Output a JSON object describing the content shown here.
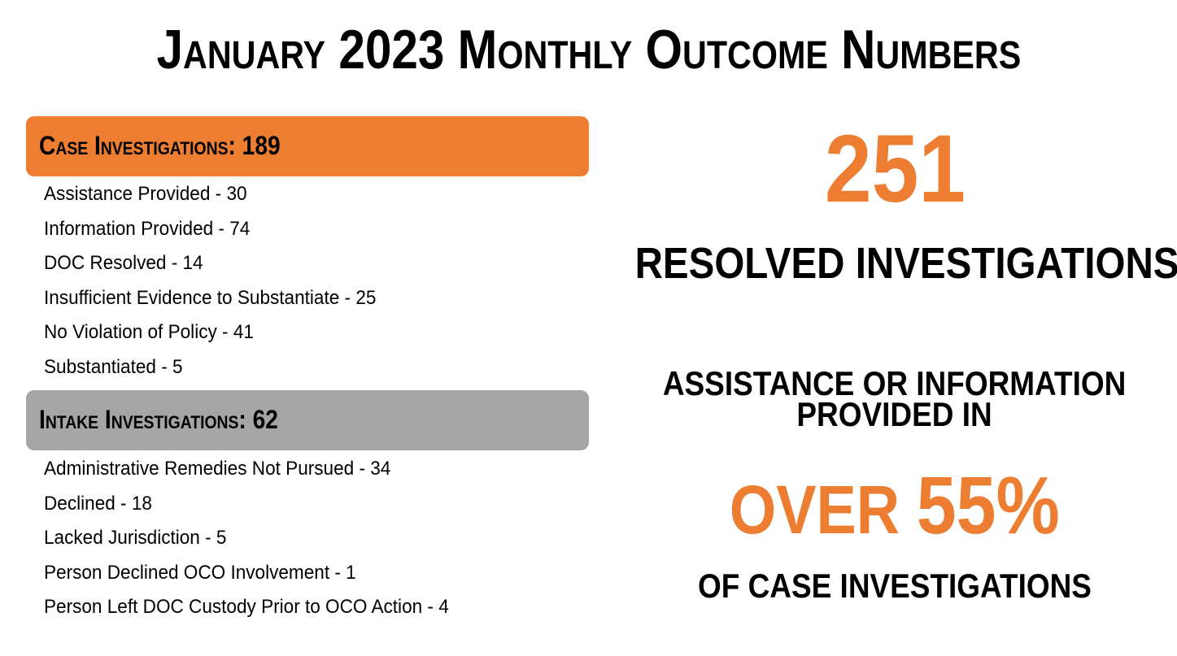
{
  "title": "January 2023 Monthly Outcome Numbers",
  "colors": {
    "accent": "#ED7D31",
    "gray": "#A5A5A5"
  },
  "case": {
    "header": "Case Investigations: 189",
    "items": [
      "Assistance Provided - 30",
      "Information Provided - 74",
      "DOC Resolved - 14",
      "Insufficient Evidence to Substantiate - 25",
      "No Violation of Policy - 41",
      "Substantiated - 5"
    ]
  },
  "intake": {
    "header": "Intake Investigations: 62",
    "items": [
      "Administrative Remedies Not Pursued - 34",
      "Declined - 18",
      "Lacked Jurisdiction - 5",
      "Person Declined OCO Involvement - 1",
      "Person Left DOC Custody Prior to OCO Action - 4"
    ]
  },
  "summary": {
    "total": "251",
    "total_label": "RESOLVED INVESTIGATIONS",
    "assist_line1": "ASSISTANCE OR INFORMATION",
    "assist_line2": "PROVIDED IN",
    "over_word": "OVER",
    "over_pct": "55%",
    "of_case": "OF CASE INVESTIGATIONS"
  }
}
